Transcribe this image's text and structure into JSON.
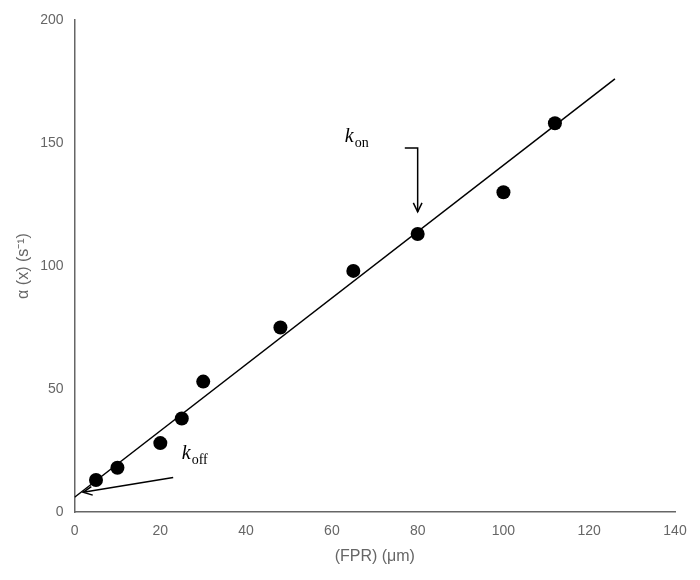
{
  "chart_data": {
    "type": "scatter",
    "x_label": "(FPR) (μm)",
    "y_label": "α (x) (s⁻¹)",
    "series": [
      {
        "type": "scatter",
        "color": "#000000",
        "marker": "circle",
        "x": [
          5,
          10,
          20,
          25,
          30,
          48,
          65,
          80,
          100,
          112
        ],
        "values": [
          13,
          18,
          28,
          38,
          53,
          75,
          98,
          113,
          130,
          158
        ]
      },
      {
        "type": "line",
        "color": "#000000",
        "line_style": "solid",
        "x": [
          0,
          126
        ],
        "values": [
          6.0,
          176.1
        ]
      }
    ],
    "xlim": [
      0,
      140
    ],
    "ylim": [
      0,
      200
    ],
    "xticks": [
      0,
      20,
      40,
      60,
      80,
      100,
      120,
      140
    ],
    "yticks": [
      0,
      50,
      100,
      150,
      200
    ],
    "grid": false,
    "annotations": [
      {
        "text": "k",
        "subscript": "on",
        "x": 63,
        "y": 148,
        "arrow": [
          [
            77,
            148
          ],
          [
            80,
            148
          ],
          [
            80,
            122
          ]
        ]
      },
      {
        "text": "k",
        "subscript": "off",
        "x": 25,
        "y": 19,
        "arrow": [
          [
            23,
            14
          ],
          [
            2,
            8
          ]
        ]
      }
    ]
  }
}
